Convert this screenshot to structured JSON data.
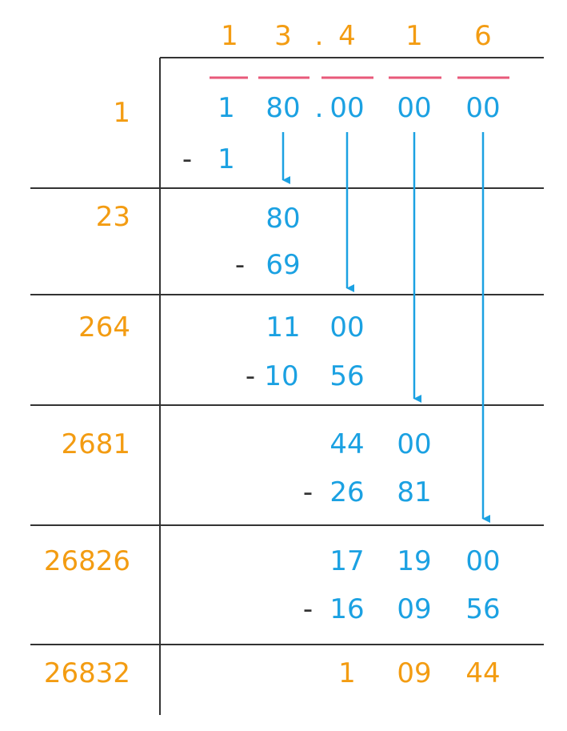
{
  "colors": {
    "orange": "#F39C12",
    "blue": "#1BA1E2",
    "pink": "#E8597A",
    "dark": "#333333"
  },
  "quotient": {
    "d1": "1",
    "d2": "3",
    "point": ".",
    "d3": "4",
    "d4": "1",
    "d5": "6"
  },
  "dividend": {
    "g1": "1",
    "g2": "80",
    "point": ".",
    "g3": "00",
    "g4": "00",
    "g5": "00"
  },
  "divisors": [
    "1",
    "23",
    "264",
    "2681",
    "26826",
    "26832"
  ],
  "steps": {
    "s1": {
      "minus": "-",
      "sub": "1"
    },
    "s2": {
      "a": "80",
      "minus": "-",
      "sub": "69"
    },
    "s3": {
      "a1": "11",
      "a2": "00",
      "minus": "-",
      "b1": "10",
      "b2": "56"
    },
    "s4": {
      "a1": "44",
      "a2": "00",
      "minus": "-",
      "b1": "26",
      "b2": "81"
    },
    "s5": {
      "a1": "17",
      "a2": "19",
      "a3": "00",
      "minus": "-",
      "b1": "16",
      "b2": "09",
      "b3": "56"
    },
    "remainder": {
      "r1": "1",
      "r2": "09",
      "r3": "44"
    }
  }
}
